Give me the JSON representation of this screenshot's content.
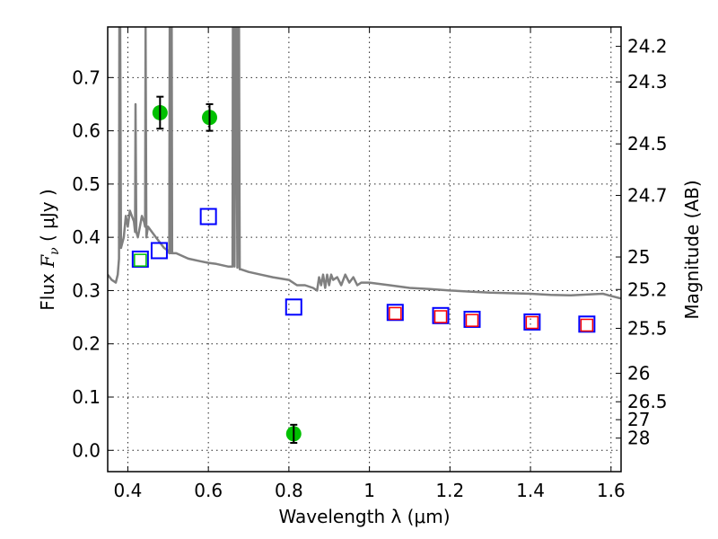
{
  "chart_data": {
    "type": "scatter",
    "title": "",
    "xlabel": "Wavelength  λ (μm)",
    "ylabel": "Flux  F_ν  ( μJy )",
    "ylabel_parts": {
      "prefix": "Flux  ",
      "symbol": "F",
      "subscript": "ν",
      "suffix": "  ( μJy )"
    },
    "y2label": "Magnitude (AB)",
    "xlim": [
      0.35,
      1.625
    ],
    "ylim": [
      -0.04,
      0.795
    ],
    "grid": true,
    "legend": "none",
    "x_ticks": [
      {
        "value": 0.4,
        "label": "0.4"
      },
      {
        "value": 0.6,
        "label": "0.6"
      },
      {
        "value": 0.8,
        "label": "0.8"
      },
      {
        "value": 1.0,
        "label": "1"
      },
      {
        "value": 1.2,
        "label": "1.2"
      },
      {
        "value": 1.4,
        "label": "1.4"
      },
      {
        "value": 1.6,
        "label": "1.6"
      }
    ],
    "y_ticks": [
      {
        "value": 0.0,
        "label": "0.0"
      },
      {
        "value": 0.1,
        "label": "0.1"
      },
      {
        "value": 0.2,
        "label": "0.2"
      },
      {
        "value": 0.3,
        "label": "0.3"
      },
      {
        "value": 0.4,
        "label": "0.4"
      },
      {
        "value": 0.5,
        "label": "0.5"
      },
      {
        "value": 0.6,
        "label": "0.6"
      },
      {
        "value": 0.7,
        "label": "0.7"
      }
    ],
    "y2_ticks_mag": [
      {
        "mag": 24.2,
        "label": "24.2"
      },
      {
        "mag": 24.3,
        "label": "24.3"
      },
      {
        "mag": 24.5,
        "label": "24.5"
      },
      {
        "mag": 24.7,
        "label": "24.7"
      },
      {
        "mag": 25.0,
        "label": "25"
      },
      {
        "mag": 25.2,
        "label": "25.2"
      },
      {
        "mag": 25.5,
        "label": "25.5"
      },
      {
        "mag": 26.0,
        "label": "26"
      },
      {
        "mag": 26.5,
        "label": "26.5"
      },
      {
        "mag": 27.0,
        "label": "27"
      },
      {
        "mag": 28.0,
        "label": "28"
      }
    ],
    "mag_zeropoint": 23.9,
    "series": [
      {
        "name": "model-spectrum",
        "kind": "line",
        "color": "#808080",
        "x": [
          0.35,
          0.36,
          0.37,
          0.375,
          0.378,
          0.379,
          0.381,
          0.383,
          0.39,
          0.395,
          0.4,
          0.405,
          0.41,
          0.415,
          0.418,
          0.419,
          0.421,
          0.425,
          0.43,
          0.435,
          0.44,
          0.443,
          0.444,
          0.446,
          0.45,
          0.46,
          0.47,
          0.48,
          0.49,
          0.5,
          0.503,
          0.504,
          0.506,
          0.507,
          0.509,
          0.51,
          0.52,
          0.55,
          0.58,
          0.6,
          0.62,
          0.65,
          0.66,
          0.661,
          0.663,
          0.665,
          0.667,
          0.669,
          0.672,
          0.674,
          0.676,
          0.678,
          0.68,
          0.7,
          0.73,
          0.76,
          0.8,
          0.82,
          0.84,
          0.86,
          0.87,
          0.875,
          0.88,
          0.885,
          0.89,
          0.895,
          0.9,
          0.905,
          0.91,
          0.92,
          0.93,
          0.94,
          0.95,
          0.96,
          0.97,
          0.98,
          1.0,
          1.05,
          1.1,
          1.15,
          1.2,
          1.25,
          1.3,
          1.35,
          1.4,
          1.45,
          1.5,
          1.55,
          1.58,
          1.6,
          1.625
        ],
        "y": [
          0.33,
          0.32,
          0.315,
          0.33,
          0.36,
          0.8,
          0.8,
          0.38,
          0.4,
          0.44,
          0.42,
          0.45,
          0.44,
          0.43,
          0.41,
          0.65,
          0.41,
          0.4,
          0.42,
          0.44,
          0.43,
          0.42,
          0.8,
          0.4,
          0.42,
          0.41,
          0.4,
          0.39,
          0.38,
          0.375,
          0.37,
          0.8,
          0.37,
          0.8,
          0.8,
          0.37,
          0.37,
          0.36,
          0.355,
          0.352,
          0.35,
          0.345,
          0.345,
          0.8,
          0.8,
          0.345,
          0.8,
          0.8,
          0.343,
          0.8,
          0.8,
          0.34,
          0.34,
          0.335,
          0.33,
          0.325,
          0.32,
          0.31,
          0.31,
          0.305,
          0.3,
          0.325,
          0.31,
          0.33,
          0.305,
          0.33,
          0.31,
          0.33,
          0.32,
          0.325,
          0.31,
          0.33,
          0.315,
          0.325,
          0.31,
          0.315,
          0.315,
          0.31,
          0.305,
          0.303,
          0.3,
          0.298,
          0.296,
          0.295,
          0.294,
          0.292,
          0.291,
          0.293,
          0.294,
          0.29,
          0.285
        ]
      },
      {
        "name": "observed-photometry",
        "kind": "scatter-errorbar",
        "marker": "circle",
        "color": "#00c000",
        "errcolor": "#000000",
        "points": [
          {
            "x": 0.48,
            "y": 0.634,
            "err": 0.03
          },
          {
            "x": 0.603,
            "y": 0.625,
            "err": 0.025
          },
          {
            "x": 0.812,
            "y": 0.031,
            "err": 0.017
          }
        ]
      },
      {
        "name": "model-photometry-blue",
        "kind": "scatter",
        "marker": "open-square",
        "color": "#0000ff",
        "points": [
          {
            "x": 0.431,
            "y": 0.359
          },
          {
            "x": 0.478,
            "y": 0.375
          },
          {
            "x": 0.6,
            "y": 0.439
          },
          {
            "x": 0.812,
            "y": 0.269
          },
          {
            "x": 1.064,
            "y": 0.259
          },
          {
            "x": 1.177,
            "y": 0.253
          },
          {
            "x": 1.255,
            "y": 0.246
          },
          {
            "x": 1.404,
            "y": 0.241
          },
          {
            "x": 1.54,
            "y": 0.237
          }
        ]
      },
      {
        "name": "model-photometry-red",
        "kind": "scatter",
        "marker": "open-square-small",
        "color": "#ff0000",
        "points": [
          {
            "x": 1.064,
            "y": 0.257
          },
          {
            "x": 1.177,
            "y": 0.251
          },
          {
            "x": 1.255,
            "y": 0.244
          },
          {
            "x": 1.404,
            "y": 0.24
          },
          {
            "x": 1.54,
            "y": 0.235
          }
        ]
      },
      {
        "name": "model-photometry-green",
        "kind": "scatter",
        "marker": "open-square-small",
        "color": "#00c000",
        "points": [
          {
            "x": 0.431,
            "y": 0.357
          }
        ]
      }
    ]
  }
}
